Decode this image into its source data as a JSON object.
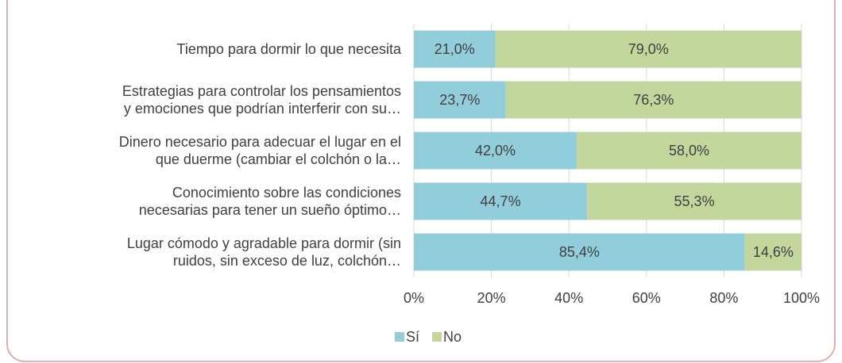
{
  "chart_data": {
    "type": "stacked-barh",
    "categories": [
      "Tiempo para dormir lo que necesita",
      "Estrategias para controlar los pensamientos\ny emociones que podrían interferir con su…",
      "Dinero necesario para adecuar el lugar en el\nque duerme (cambiar el colchón o la…",
      "Conocimiento sobre las condiciones\nnecesarias para tener un sueño óptimo…",
      "Lugar cómodo y agradable para dormir (sin\nruidos, sin exceso de luz, colchón…"
    ],
    "series": [
      {
        "name": "Sí",
        "color": "#92cddc",
        "values": [
          21.0,
          23.7,
          42.0,
          44.7,
          85.4
        ],
        "value_labels": [
          "21,0%",
          "23,7%",
          "42,0%",
          "44,7%",
          "85,4%"
        ]
      },
      {
        "name": "No",
        "color": "#c3d69b",
        "values": [
          79.0,
          76.3,
          58.0,
          55.3,
          14.6
        ],
        "value_labels": [
          "79,0%",
          "76,3%",
          "58,0%",
          "55,3%",
          "14,6%"
        ]
      }
    ],
    "xlim": [
      0,
      100
    ],
    "xticks": [
      {
        "value": 0,
        "label": "0%"
      },
      {
        "value": 20,
        "label": "20%"
      },
      {
        "value": 40,
        "label": "40%"
      },
      {
        "value": 60,
        "label": "60%"
      },
      {
        "value": 80,
        "label": "80%"
      },
      {
        "value": 100,
        "label": "100%"
      }
    ],
    "grid": true,
    "legend": "bottom"
  }
}
